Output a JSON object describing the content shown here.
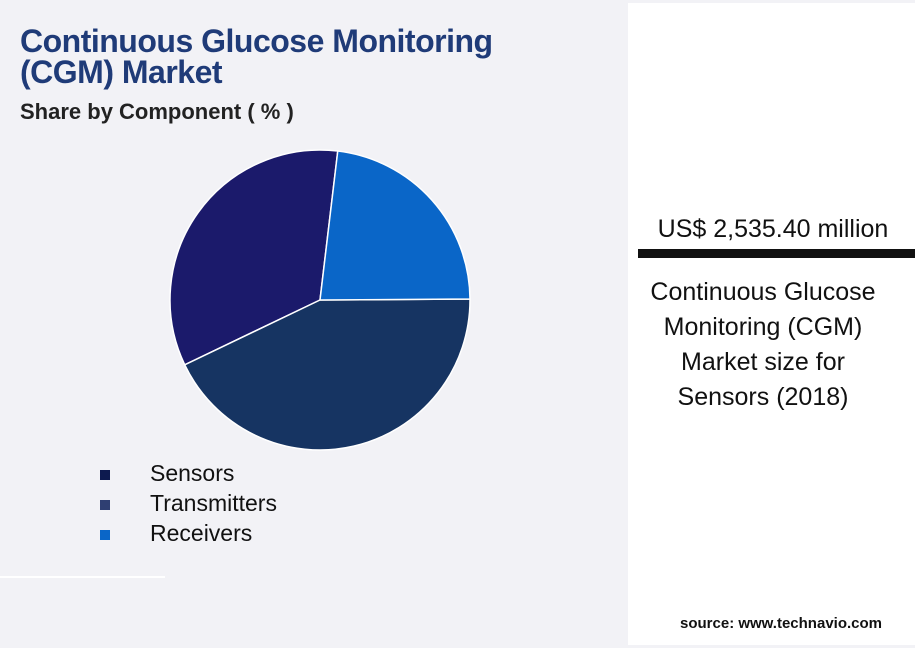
{
  "chart_data": {
    "type": "pie",
    "title": "Continuous Glucose Monitoring (CGM) Market",
    "subtitle": "Share by Component ( % )",
    "categories": [
      "Sensors",
      "Transmitters",
      "Receivers"
    ],
    "values": [
      34,
      43,
      23
    ],
    "colors": [
      "#1b1a6b",
      "#163462",
      "#0a66c8"
    ],
    "legend_colors": [
      "#0d1a4f",
      "#2f3f72",
      "#0a66c8"
    ]
  },
  "sidebar": {
    "headline": "US$ 2,535.40 million",
    "description": "Continuous Glucose Monitoring (CGM) Market size for Sensors (2018)",
    "source": "source: www.technavio.com"
  }
}
